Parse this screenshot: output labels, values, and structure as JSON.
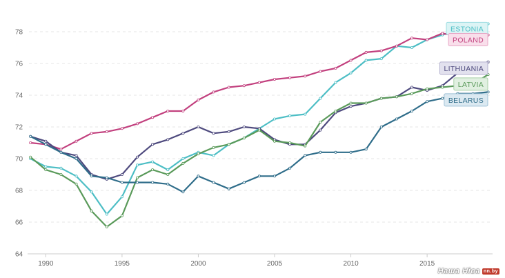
{
  "chart_data": {
    "type": "line",
    "title": "",
    "xlabel": "",
    "ylabel": "",
    "xlim": [
      1988.9,
      2019.2
    ],
    "ylim": [
      64,
      80
    ],
    "y_ticks": [
      "64",
      "66",
      "68",
      "70",
      "72",
      "74",
      "76",
      "78"
    ],
    "x_ticks": [
      "1990",
      "1995",
      "2000",
      "2005",
      "2010",
      "2015"
    ],
    "grid": true,
    "legend": "right, labels at line ends",
    "x": [
      1989,
      1990,
      1991,
      1992,
      1993,
      1994,
      1995,
      1996,
      1997,
      1998,
      1999,
      2000,
      2001,
      2002,
      2003,
      2004,
      2005,
      2006,
      2007,
      2008,
      2009,
      2010,
      2011,
      2012,
      2013,
      2014,
      2015,
      2016,
      2017,
      2018,
      2019
    ],
    "series": [
      {
        "name": "ESTONIA",
        "color": "#4dbec5",
        "values": [
          70.0,
          69.5,
          69.4,
          68.9,
          67.9,
          66.5,
          67.6,
          69.6,
          69.8,
          69.3,
          70.0,
          70.4,
          70.2,
          70.9,
          71.3,
          71.9,
          72.5,
          72.7,
          72.8,
          73.8,
          74.8,
          75.4,
          76.2,
          76.3,
          77.1,
          77.0,
          77.5,
          77.8,
          78.1,
          78.2,
          78.5
        ]
      },
      {
        "name": "POLAND",
        "color": "#c2407e",
        "values": [
          71.0,
          70.9,
          70.6,
          71.1,
          71.6,
          71.7,
          71.9,
          72.2,
          72.6,
          73.0,
          73.0,
          73.7,
          74.2,
          74.5,
          74.6,
          74.8,
          75.0,
          75.1,
          75.2,
          75.5,
          75.7,
          76.2,
          76.7,
          76.8,
          77.1,
          77.6,
          77.5,
          77.9,
          77.7,
          77.6,
          77.8
        ]
      },
      {
        "name": "LITHUANIA",
        "color": "#4e4a7e",
        "values": [
          71.4,
          71.1,
          70.4,
          70.2,
          69.0,
          68.7,
          69.0,
          70.1,
          70.9,
          71.2,
          71.6,
          72.0,
          71.6,
          71.7,
          72.0,
          71.9,
          71.2,
          70.9,
          70.9,
          71.8,
          72.9,
          73.3,
          73.5,
          73.8,
          73.9,
          74.5,
          74.3,
          74.6,
          75.4,
          75.8,
          76.1
        ]
      },
      {
        "name": "LATVIA",
        "color": "#5a9a5a",
        "values": [
          70.1,
          69.3,
          69.0,
          68.4,
          66.7,
          65.7,
          66.4,
          68.8,
          69.3,
          69.0,
          69.7,
          70.3,
          70.7,
          70.9,
          71.3,
          71.8,
          71.1,
          71.0,
          70.8,
          72.3,
          73.0,
          73.5,
          73.5,
          73.8,
          73.9,
          74.1,
          74.4,
          74.5,
          74.6,
          74.7,
          75.3
        ]
      },
      {
        "name": "BELARUS",
        "color": "#2f6d8a",
        "values": [
          71.4,
          70.9,
          70.4,
          70.0,
          68.9,
          68.8,
          68.5,
          68.5,
          68.5,
          68.4,
          67.9,
          68.9,
          68.5,
          68.1,
          68.5,
          68.9,
          68.9,
          69.4,
          70.2,
          70.4,
          70.4,
          70.4,
          70.6,
          72.0,
          72.5,
          73.0,
          73.6,
          73.8,
          74.1,
          74.1,
          74.2
        ]
      }
    ]
  },
  "legend_labels": [
    {
      "text": "ESTONIA",
      "color": "#4dbec5",
      "bg": "#dcf4f5",
      "border": "#9cdde1",
      "value": 78.2
    },
    {
      "text": "POLAND",
      "color": "#c2407e",
      "bg": "#f9dfeb",
      "border": "#e8a9c7",
      "value": 77.5
    },
    {
      "text": "LITHUANIA",
      "color": "#4e4a7e",
      "bg": "#e2e1ee",
      "border": "#b3b0cf",
      "value": 75.7
    },
    {
      "text": "LATVIA",
      "color": "#5a9a5a",
      "bg": "#e1f0e1",
      "border": "#a9d0a9",
      "value": 74.7
    },
    {
      "text": "BELARUS",
      "color": "#2f6d8a",
      "bg": "#dbe9f1",
      "border": "#9fc2d6",
      "value": 73.7
    }
  ],
  "watermark": {
    "text": "Наша Ніва",
    "domain": "nn.by"
  }
}
